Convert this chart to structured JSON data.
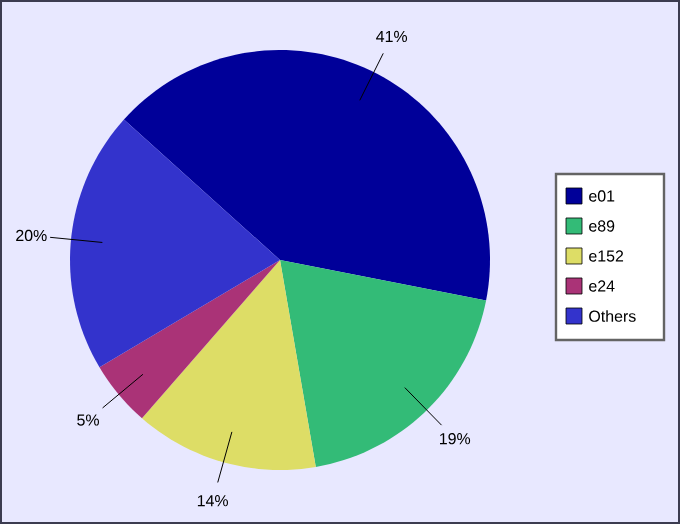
{
  "chart_data": {
    "type": "pie",
    "categories": [
      "e01",
      "e89",
      "e152",
      "e24",
      "Others"
    ],
    "values": [
      41,
      19,
      14,
      5,
      20
    ],
    "value_labels": [
      "41%",
      "19%",
      "14%",
      "5%",
      "20%"
    ],
    "colors": [
      "#000099",
      "#33bb77",
      "#dddd66",
      "#aa3377",
      "#3333cc"
    ],
    "legend": "right"
  }
}
